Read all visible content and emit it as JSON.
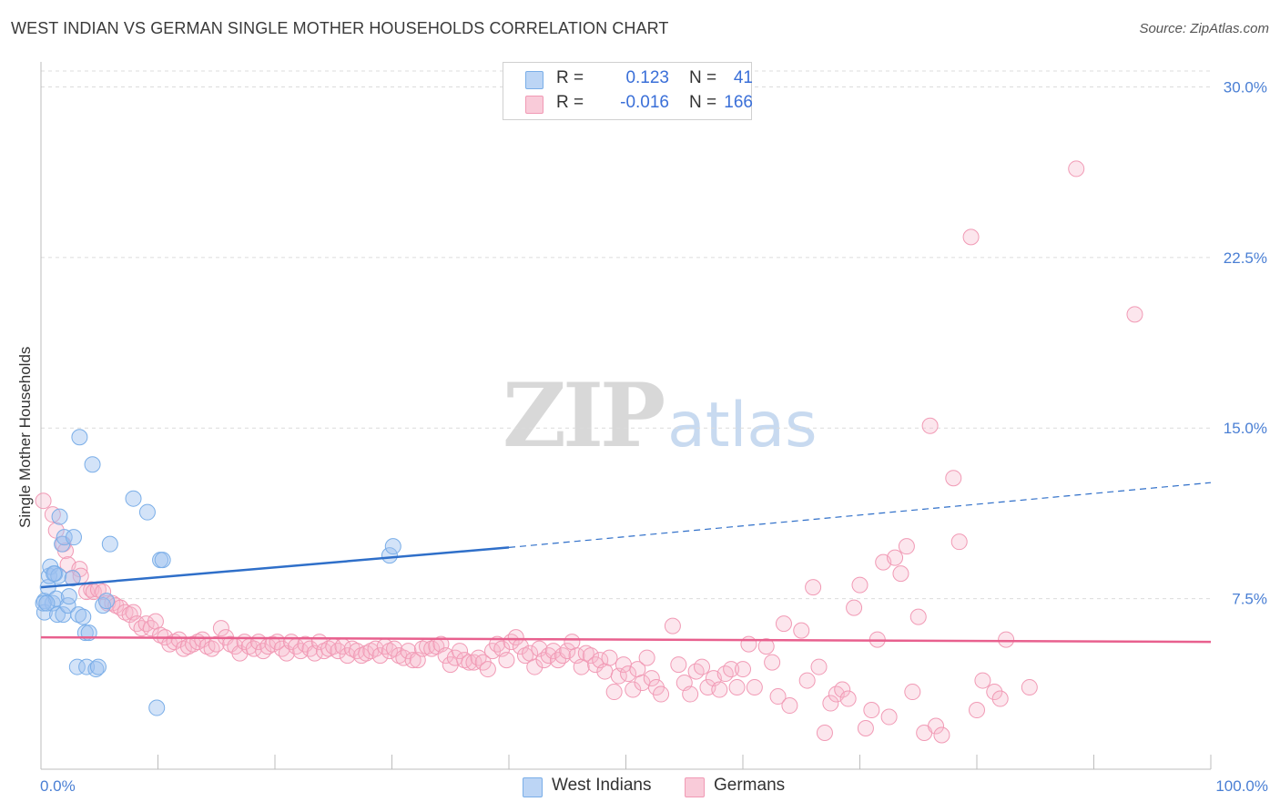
{
  "header": {
    "title": "WEST INDIAN VS GERMAN SINGLE MOTHER HOUSEHOLDS CORRELATION CHART",
    "source": "Source: ZipAtlas.com"
  },
  "watermark": {
    "zip": "ZIP",
    "atlas": "atlas"
  },
  "legend": {
    "r_label": "R =",
    "n_label": "N =",
    "rows": [
      {
        "r": "0.123",
        "n": "41",
        "color": "#9ec2ef"
      },
      {
        "r": "-0.016",
        "n": "166",
        "color": "#f5b8cb"
      }
    ]
  },
  "bottom_legend": [
    {
      "label": "West Indians",
      "color": "#9ec2ef"
    },
    {
      "label": "Germans",
      "color": "#f5b8cb"
    }
  ],
  "chart_data": {
    "type": "scatter",
    "title": "WEST INDIAN VS GERMAN SINGLE MOTHER HOUSEHOLDS CORRELATION CHART",
    "xlabel": "",
    "ylabel": "Single Mother Households",
    "xlim": [
      0,
      100
    ],
    "ylim": [
      0,
      30.7
    ],
    "x_tick_labels": [
      "0.0%",
      "100.0%"
    ],
    "y_ticks": [
      7.5,
      15.0,
      22.5,
      30.0
    ],
    "y_tick_labels": [
      "7.5%",
      "15.0%",
      "22.5%",
      "30.0%"
    ],
    "grid": true,
    "legend_position": "top-center",
    "series": [
      {
        "name": "West Indians",
        "color": "#7aaee8",
        "trend": {
          "x0": 0,
          "y0": 8.0,
          "x1": 40,
          "y1": 9.75,
          "dashed_to_x": 100,
          "dashed_to_y": 12.6,
          "color": "#2f6fc9"
        },
        "points": [
          [
            0.3,
            7.4
          ],
          [
            0.3,
            6.9
          ],
          [
            0.6,
            8.0
          ],
          [
            0.7,
            8.5
          ],
          [
            0.8,
            8.9
          ],
          [
            1.0,
            7.3
          ],
          [
            1.2,
            8.6
          ],
          [
            1.3,
            7.5
          ],
          [
            1.4,
            6.8
          ],
          [
            1.5,
            8.5
          ],
          [
            1.6,
            11.1
          ],
          [
            1.8,
            9.9
          ],
          [
            1.9,
            6.8
          ],
          [
            2.0,
            10.2
          ],
          [
            2.3,
            7.2
          ],
          [
            2.4,
            7.6
          ],
          [
            2.7,
            8.4
          ],
          [
            2.8,
            10.2
          ],
          [
            3.1,
            4.5
          ],
          [
            3.2,
            6.8
          ],
          [
            3.3,
            14.6
          ],
          [
            3.6,
            6.7
          ],
          [
            3.8,
            6.0
          ],
          [
            3.9,
            4.5
          ],
          [
            4.1,
            6.0
          ],
          [
            4.4,
            13.4
          ],
          [
            4.7,
            4.4
          ],
          [
            4.9,
            4.5
          ],
          [
            5.3,
            7.2
          ],
          [
            5.6,
            7.4
          ],
          [
            5.9,
            9.9
          ],
          [
            7.9,
            11.9
          ],
          [
            9.1,
            11.3
          ],
          [
            9.9,
            2.7
          ],
          [
            10.2,
            9.2
          ],
          [
            10.4,
            9.2
          ],
          [
            29.8,
            9.4
          ],
          [
            30.1,
            9.8
          ],
          [
            0.2,
            7.3
          ],
          [
            0.5,
            7.3
          ],
          [
            1.1,
            8.6
          ]
        ]
      },
      {
        "name": "Germans",
        "color": "#f19ab5",
        "trend": {
          "x0": 0,
          "y0": 5.8,
          "x1": 100,
          "y1": 5.6,
          "color": "#e8608e"
        },
        "points": [
          [
            0.2,
            11.8
          ],
          [
            1.0,
            11.2
          ],
          [
            1.3,
            10.5
          ],
          [
            1.9,
            9.9
          ],
          [
            2.1,
            9.6
          ],
          [
            2.3,
            9.0
          ],
          [
            2.7,
            8.4
          ],
          [
            3.3,
            8.8
          ],
          [
            3.4,
            8.5
          ],
          [
            3.9,
            7.8
          ],
          [
            4.3,
            7.9
          ],
          [
            4.5,
            7.8
          ],
          [
            4.9,
            7.9
          ],
          [
            5.3,
            7.8
          ],
          [
            5.7,
            7.3
          ],
          [
            6.1,
            7.3
          ],
          [
            6.4,
            7.2
          ],
          [
            6.8,
            7.1
          ],
          [
            7.2,
            6.9
          ],
          [
            7.6,
            6.8
          ],
          [
            7.9,
            6.9
          ],
          [
            8.2,
            6.4
          ],
          [
            8.6,
            6.2
          ],
          [
            9.0,
            6.4
          ],
          [
            9.4,
            6.2
          ],
          [
            9.8,
            6.5
          ],
          [
            10.2,
            5.9
          ],
          [
            10.6,
            5.8
          ],
          [
            11.0,
            5.5
          ],
          [
            11.4,
            5.6
          ],
          [
            11.8,
            5.7
          ],
          [
            12.2,
            5.3
          ],
          [
            12.6,
            5.4
          ],
          [
            13.0,
            5.5
          ],
          [
            13.4,
            5.6
          ],
          [
            13.8,
            5.7
          ],
          [
            14.2,
            5.4
          ],
          [
            14.6,
            5.3
          ],
          [
            15.0,
            5.5
          ],
          [
            15.4,
            6.2
          ],
          [
            15.8,
            5.8
          ],
          [
            16.2,
            5.5
          ],
          [
            16.6,
            5.4
          ],
          [
            17.0,
            5.1
          ],
          [
            17.4,
            5.6
          ],
          [
            17.8,
            5.4
          ],
          [
            18.2,
            5.3
          ],
          [
            18.6,
            5.6
          ],
          [
            19.0,
            5.2
          ],
          [
            19.4,
            5.4
          ],
          [
            19.8,
            5.5
          ],
          [
            20.2,
            5.6
          ],
          [
            20.6,
            5.3
          ],
          [
            21.0,
            5.1
          ],
          [
            21.4,
            5.6
          ],
          [
            21.8,
            5.4
          ],
          [
            22.2,
            5.2
          ],
          [
            22.6,
            5.5
          ],
          [
            23.0,
            5.3
          ],
          [
            23.4,
            5.1
          ],
          [
            23.8,
            5.6
          ],
          [
            24.2,
            5.2
          ],
          [
            24.6,
            5.3
          ],
          [
            25.0,
            5.4
          ],
          [
            25.4,
            5.2
          ],
          [
            25.8,
            5.4
          ],
          [
            26.2,
            5.0
          ],
          [
            26.6,
            5.3
          ],
          [
            27.0,
            5.2
          ],
          [
            27.4,
            5.0
          ],
          [
            27.8,
            5.1
          ],
          [
            28.2,
            5.2
          ],
          [
            28.6,
            5.3
          ],
          [
            29.0,
            5.0
          ],
          [
            29.4,
            5.4
          ],
          [
            29.8,
            5.2
          ],
          [
            30.2,
            5.3
          ],
          [
            30.6,
            5.0
          ],
          [
            31.0,
            4.9
          ],
          [
            31.4,
            5.2
          ],
          [
            31.8,
            4.8
          ],
          [
            32.2,
            4.8
          ],
          [
            32.6,
            5.3
          ],
          [
            33.0,
            5.4
          ],
          [
            33.4,
            5.3
          ],
          [
            33.8,
            5.4
          ],
          [
            34.2,
            5.5
          ],
          [
            34.6,
            5.0
          ],
          [
            35.0,
            4.6
          ],
          [
            35.4,
            4.9
          ],
          [
            35.8,
            5.2
          ],
          [
            36.2,
            4.8
          ],
          [
            36.6,
            4.7
          ],
          [
            37.0,
            4.7
          ],
          [
            37.4,
            4.9
          ],
          [
            37.8,
            4.7
          ],
          [
            38.2,
            4.4
          ],
          [
            38.6,
            5.2
          ],
          [
            39.0,
            5.5
          ],
          [
            39.4,
            5.3
          ],
          [
            39.8,
            4.8
          ],
          [
            40.2,
            5.6
          ],
          [
            40.6,
            5.8
          ],
          [
            41.0,
            5.4
          ],
          [
            41.4,
            5.0
          ],
          [
            41.8,
            5.1
          ],
          [
            42.2,
            4.5
          ],
          [
            42.6,
            5.3
          ],
          [
            43.0,
            4.8
          ],
          [
            43.4,
            5.0
          ],
          [
            43.8,
            5.2
          ],
          [
            44.2,
            4.8
          ],
          [
            44.6,
            5.0
          ],
          [
            45.0,
            5.2
          ],
          [
            45.4,
            5.6
          ],
          [
            45.8,
            5.0
          ],
          [
            46.2,
            4.5
          ],
          [
            46.6,
            5.1
          ],
          [
            47.0,
            5.0
          ],
          [
            47.4,
            4.6
          ],
          [
            47.8,
            4.8
          ],
          [
            48.2,
            4.3
          ],
          [
            48.6,
            4.9
          ],
          [
            49.0,
            3.4
          ],
          [
            49.4,
            4.1
          ],
          [
            49.8,
            4.6
          ],
          [
            50.2,
            4.2
          ],
          [
            50.6,
            3.5
          ],
          [
            51.0,
            4.4
          ],
          [
            51.4,
            3.8
          ],
          [
            51.8,
            4.9
          ],
          [
            52.2,
            4.0
          ],
          [
            52.6,
            3.6
          ],
          [
            53.0,
            3.3
          ],
          [
            54.0,
            6.3
          ],
          [
            54.5,
            4.6
          ],
          [
            55.0,
            3.8
          ],
          [
            55.5,
            3.3
          ],
          [
            56.0,
            4.3
          ],
          [
            56.5,
            4.5
          ],
          [
            57.0,
            3.6
          ],
          [
            57.5,
            4.0
          ],
          [
            58.0,
            3.5
          ],
          [
            58.5,
            4.2
          ],
          [
            59.0,
            4.4
          ],
          [
            59.5,
            3.6
          ],
          [
            60.0,
            4.4
          ],
          [
            60.5,
            5.5
          ],
          [
            61.0,
            3.6
          ],
          [
            62.0,
            5.4
          ],
          [
            62.5,
            4.7
          ],
          [
            63.0,
            3.2
          ],
          [
            63.5,
            6.4
          ],
          [
            64.0,
            2.8
          ],
          [
            65.0,
            6.1
          ],
          [
            65.5,
            3.9
          ],
          [
            66.0,
            8.0
          ],
          [
            66.5,
            4.5
          ],
          [
            67.0,
            1.6
          ],
          [
            67.5,
            2.9
          ],
          [
            68.0,
            3.3
          ],
          [
            68.5,
            3.5
          ],
          [
            69.0,
            3.1
          ],
          [
            69.5,
            7.1
          ],
          [
            70.0,
            8.1
          ],
          [
            70.5,
            1.8
          ],
          [
            71.0,
            2.6
          ],
          [
            71.5,
            5.7
          ],
          [
            72.0,
            9.1
          ],
          [
            72.5,
            2.3
          ],
          [
            73.0,
            9.3
          ],
          [
            73.5,
            8.6
          ],
          [
            74.0,
            9.8
          ],
          [
            74.5,
            3.4
          ],
          [
            75.0,
            6.7
          ],
          [
            75.5,
            1.6
          ],
          [
            76.0,
            15.1
          ],
          [
            76.5,
            1.9
          ],
          [
            77.0,
            1.5
          ],
          [
            78.0,
            12.8
          ],
          [
            78.5,
            10.0
          ],
          [
            79.5,
            23.4
          ],
          [
            80.0,
            2.6
          ],
          [
            80.5,
            3.9
          ],
          [
            81.5,
            3.4
          ],
          [
            82.0,
            3.1
          ],
          [
            82.5,
            5.7
          ],
          [
            84.5,
            3.6
          ],
          [
            88.5,
            26.4
          ],
          [
            93.5,
            20.0
          ]
        ]
      }
    ]
  }
}
